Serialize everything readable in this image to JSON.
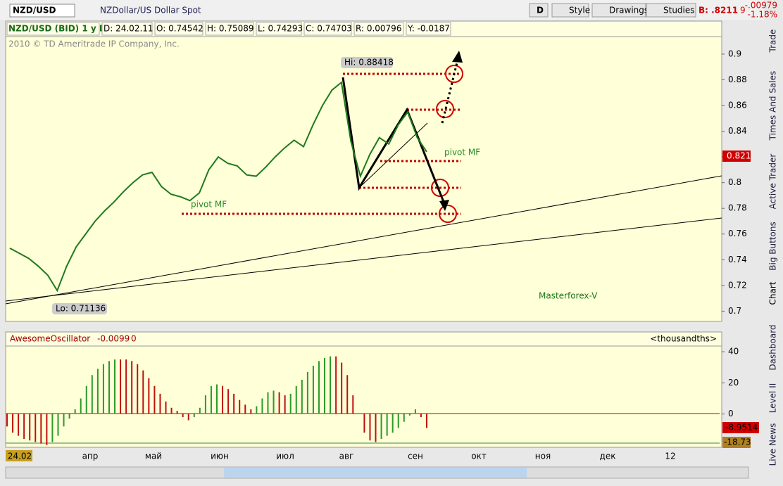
{
  "toolbar": {
    "symbol": "NZD/USD",
    "description": "NZDollar/US Dollar Spot",
    "buttons": [
      "D",
      "Style",
      "Drawings",
      "Studies"
    ],
    "bid": "B: .8211",
    "bid_last_digit": "9",
    "change": "-.00979",
    "change_percent": "-1.18%"
  },
  "info_bar": [
    "NZD/USD (BID) 1 y D",
    "D: 24.02.11",
    "O: 0.74542",
    "H: 0.75089",
    "L: 0.74293",
    "C: 0.74703",
    "R: 0.00796",
    "Y: -0.0187"
  ],
  "copyright": "2010 © TD Ameritrade IP Company, Inc.",
  "side_tabs": [
    "Trade",
    "Times And Sales",
    "Active Trader",
    "Big Buttons",
    "Chart",
    "Dashboard",
    "Level II",
    "Live News"
  ],
  "time_axis": [
    "24.02",
    "апр",
    "май",
    "июн",
    "июл",
    "авг",
    "сен",
    "окт",
    "ноя",
    "дек",
    "12"
  ],
  "chart_data": [
    {
      "type": "line",
      "color": "#1e7a1e",
      "values": [
        0.749,
        0.745,
        0.741,
        0.735,
        0.728,
        0.716,
        0.735,
        0.75,
        0.76,
        0.77,
        0.778,
        0.785,
        0.793,
        0.8,
        0.806,
        0.808,
        0.797,
        0.791,
        0.789,
        0.786,
        0.792,
        0.81,
        0.82,
        0.815,
        0.813,
        0.806,
        0.805,
        0.812,
        0.82,
        0.827,
        0.833,
        0.828,
        0.845,
        0.86,
        0.872,
        0.878,
        0.832,
        0.805,
        0.822,
        0.835,
        0.83,
        0.845,
        0.855,
        0.835,
        0.824
      ],
      "ylim": [
        0.692,
        0.912
      ],
      "yticks": [
        0.7,
        0.72,
        0.74,
        0.76,
        0.78,
        0.8,
        0.82,
        0.84,
        0.86,
        0.88,
        0.9
      ],
      "annotations": {
        "high": "Hi: 0.88418",
        "low": "Lo: 0.71136",
        "pivot_upper": "pivot MF",
        "pivot_lower": "pivot MF",
        "watermark": "Masterforex-V"
      },
      "last_price_label": "0.821"
    },
    {
      "type": "bar",
      "title": "AwesomeOscillator",
      "header_values": [
        "-0.0099",
        "0"
      ],
      "units": "<thousandths>",
      "values": [
        -8,
        -12,
        -14,
        -16,
        -17,
        -18,
        -19,
        -20,
        -18,
        -14,
        -8,
        -3,
        3,
        10,
        18,
        25,
        29,
        32,
        34,
        35,
        35,
        35,
        34,
        32,
        28,
        23,
        18,
        13,
        8,
        4,
        2,
        -2,
        -4,
        -2,
        4,
        12,
        18,
        19,
        18,
        16,
        13,
        9,
        6,
        3,
        5,
        10,
        14,
        15,
        14,
        12,
        13,
        18,
        22,
        27,
        31,
        34,
        36,
        37,
        37,
        33,
        25,
        12,
        0,
        -12,
        -17,
        -18,
        -16,
        -14,
        -12,
        -9,
        -5,
        -1,
        3,
        -2,
        -9
      ],
      "ylim": [
        -21.4,
        44.1
      ],
      "yticks": [
        0,
        20,
        40
      ],
      "side_labels": [
        "-8.9514",
        "-18.73"
      ]
    }
  ]
}
